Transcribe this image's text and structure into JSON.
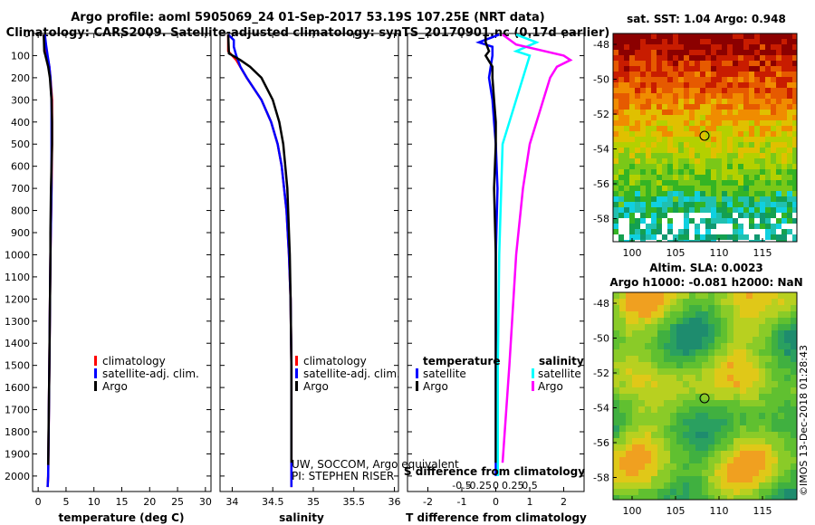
{
  "title": {
    "line1": "Argo profile: aoml 5905069_24 01-Sep-2017 53.19S 107.25E (NRT data)",
    "line2": "Climatology: CARS2009. Satellite-adjusted climatology: synTS_20170901.nc (0.17d earlier)"
  },
  "colors": {
    "climatology": "#ff0000",
    "satellite": "#0000ff",
    "argo": "#000000",
    "cyan": "#00ffff",
    "magenta": "#ff00ff"
  },
  "chart_data": [
    {
      "type": "line",
      "id": "temperature",
      "xlabel": "temperature (deg C)",
      "xlim": [
        -1,
        31
      ],
      "ylim": [
        0,
        2070
      ],
      "xticks": [
        0,
        5,
        10,
        15,
        20,
        25,
        30
      ],
      "xtick_labels": [
        "0",
        "5",
        "10",
        "15",
        "20",
        "25",
        "30"
      ],
      "yticks": [
        0,
        100,
        200,
        300,
        400,
        500,
        600,
        700,
        800,
        900,
        1000,
        1100,
        1200,
        1300,
        1400,
        1500,
        1600,
        1700,
        1800,
        1900,
        2000
      ],
      "ytick_labels": [
        "0",
        "100",
        "200",
        "300",
        "400",
        "500",
        "600",
        "700",
        "800",
        "900",
        "1000",
        "1100",
        "1200",
        "1300",
        "1400",
        "1500",
        "1600",
        "1700",
        "1800",
        "1900",
        "2000"
      ],
      "legend": [
        "climatology",
        "satellite-adj. clim.",
        "Argo"
      ],
      "series": [
        {
          "name": "climatology",
          "color": "#ff0000",
          "depth": [
            5,
            50,
            100,
            150,
            200,
            300,
            400,
            500,
            700,
            1000,
            1500,
            2000,
            2050
          ],
          "values": [
            1.0,
            1.2,
            1.6,
            2.0,
            2.2,
            2.5,
            2.5,
            2.5,
            2.4,
            2.2,
            2.0,
            1.8,
            1.7
          ]
        },
        {
          "name": "satellite-adj. clim.",
          "color": "#0000ff",
          "depth": [
            5,
            50,
            100,
            150,
            200,
            300,
            400,
            500,
            700,
            1000,
            1500,
            2000,
            2050
          ],
          "values": [
            1.2,
            1.4,
            1.7,
            2.0,
            2.2,
            2.4,
            2.4,
            2.4,
            2.4,
            2.2,
            2.0,
            1.8,
            1.7
          ]
        },
        {
          "name": "Argo",
          "color": "#000000",
          "depth": [
            5,
            80,
            100,
            150,
            200,
            300,
            400,
            500,
            700,
            900,
            1000,
            1500,
            1950
          ],
          "values": [
            1.0,
            1.1,
            1.3,
            1.8,
            2.1,
            2.4,
            2.5,
            2.5,
            2.3,
            2.2,
            2.2,
            2.0,
            1.8
          ]
        }
      ]
    },
    {
      "type": "line",
      "id": "salinity",
      "xlabel": "salinity",
      "xlim": [
        33.85,
        36.05
      ],
      "ylim": [
        0,
        2070
      ],
      "xticks": [
        34,
        34.5,
        35,
        35.5,
        36
      ],
      "xtick_labels": [
        "34",
        "34.5",
        "35",
        "35.5",
        "36"
      ],
      "legend": [
        "climatology",
        "satellite-adj. clim.",
        "Argo"
      ],
      "annotation1": "UW, SOCCOM, Argo equivalent",
      "annotation2": "PI: STEPHEN RISER",
      "series": [
        {
          "name": "climatology",
          "color": "#ff0000",
          "depth": [
            5,
            80,
            120,
            200,
            300,
            400,
            500,
            600,
            800,
            1000,
            1200,
            1500,
            2000,
            2050
          ],
          "values": [
            33.95,
            33.95,
            34.05,
            34.18,
            34.36,
            34.48,
            34.56,
            34.61,
            34.67,
            34.7,
            34.72,
            34.73,
            34.73,
            34.73
          ]
        },
        {
          "name": "satellite-adj. clim.",
          "color": "#0000ff",
          "depth": [
            5,
            30,
            60,
            100,
            150,
            200,
            300,
            400,
            500,
            600,
            800,
            1000,
            1200,
            1500,
            2000,
            2050
          ],
          "values": [
            33.95,
            34.02,
            34.02,
            34.05,
            34.1,
            34.18,
            34.36,
            34.48,
            34.56,
            34.61,
            34.67,
            34.7,
            34.72,
            34.73,
            34.73,
            34.73
          ]
        },
        {
          "name": "Argo",
          "color": "#000000",
          "depth": [
            5,
            90,
            120,
            150,
            200,
            300,
            400,
            500,
            700,
            900,
            1000,
            1200,
            1500,
            1940
          ],
          "values": [
            33.95,
            33.96,
            34.1,
            34.22,
            34.36,
            34.5,
            34.58,
            34.63,
            34.68,
            34.7,
            34.71,
            34.72,
            34.73,
            34.73
          ]
        }
      ]
    },
    {
      "type": "line",
      "id": "difference",
      "xlabel": "T difference from climatology",
      "xlabel2": "S difference from climatology",
      "xlim": [
        -2.6,
        2.6
      ],
      "ylim": [
        0,
        2070
      ],
      "xticks": [
        -2,
        -1,
        0,
        1,
        2
      ],
      "xtick_labels": [
        "-2",
        "-1",
        "0",
        "1",
        "2"
      ],
      "s_ticks": [
        -0.5,
        -0.25,
        0,
        0.25,
        0.5
      ],
      "s_tick_labels": [
        "-0.5",
        "-0.25",
        "0",
        "0.25",
        "0.5"
      ],
      "legend_temperature": "temperature",
      "legend_salinity": "salinity",
      "legend_items": [
        "satellite",
        "Argo",
        "satellite",
        "Argo"
      ],
      "series": [
        {
          "name": "temperature satellite",
          "color": "#0000ff",
          "depth": [
            5,
            40,
            60,
            100,
            200,
            300,
            400,
            500,
            700,
            1000,
            1500,
            2000
          ],
          "values": [
            0.1,
            -0.5,
            -0.1,
            -0.1,
            -0.2,
            -0.1,
            -0.05,
            0,
            0.05,
            0,
            0,
            0
          ]
        },
        {
          "name": "temperature Argo",
          "color": "#000000",
          "depth": [
            5,
            40,
            80,
            100,
            150,
            200,
            300,
            400,
            500,
            700,
            1000,
            1500,
            1940
          ],
          "values": [
            -0.3,
            -0.3,
            -0.2,
            -0.3,
            -0.1,
            -0.1,
            -0.05,
            0,
            0,
            -0.05,
            0,
            0,
            0
          ]
        },
        {
          "name": "salinity satellite",
          "color": "#00ffff",
          "depth": [
            5,
            40,
            80,
            100,
            200,
            300,
            400,
            500,
            700,
            1000,
            1500,
            2000
          ],
          "values": [
            0.3,
            0.6,
            0.3,
            0.5,
            0.4,
            0.3,
            0.2,
            0.1,
            0.08,
            0.05,
            0.03,
            0.03
          ]
        },
        {
          "name": "salinity Argo",
          "color": "#ff00ff",
          "depth": [
            5,
            50,
            100,
            120,
            150,
            200,
            300,
            400,
            500,
            700,
            1000,
            1500,
            1940
          ],
          "values": [
            0.1,
            0.3,
            1.0,
            1.1,
            0.9,
            0.8,
            0.7,
            0.6,
            0.5,
            0.4,
            0.3,
            0.2,
            0.1
          ]
        }
      ]
    }
  ],
  "maps": {
    "sst": {
      "title": "sat. SST: 1.04 Argo: 0.948",
      "xticks": [
        "100",
        "105",
        "110",
        "115"
      ],
      "yticks": [
        "-48",
        "-50",
        "-52",
        "-54",
        "-56",
        "-58"
      ]
    },
    "sla": {
      "title1": "Altim. SLA: 0.0023",
      "title2": "Argo h1000: -0.081 h2000: NaN",
      "xticks": [
        "100",
        "105",
        "110",
        "115"
      ],
      "yticks": [
        "-48",
        "-50",
        "-52",
        "-54",
        "-56",
        "-58"
      ]
    }
  },
  "credit": "©IMOS 13-Dec-2018 01:28:43"
}
